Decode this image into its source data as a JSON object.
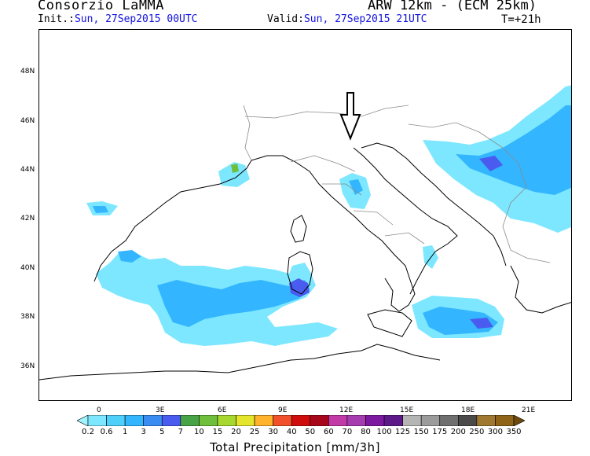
{
  "header": {
    "title": "Consorzio LaMMA",
    "model": "ARW 12km - (ECM 25km)",
    "init_label": "Init.:",
    "init_value": "Sun, 27Sep2015 00UTC",
    "valid_label": "Valid:",
    "valid_value": "Sun, 27Sep2015 21UTC",
    "lead_time": "T=+21h"
  },
  "map": {
    "lat_labels": [
      "48N",
      "46N",
      "44N",
      "42N",
      "40N",
      "38N",
      "36N"
    ],
    "lon_labels": [
      "0",
      "3E",
      "6E",
      "9E",
      "12E",
      "15E",
      "18E",
      "21E"
    ],
    "arrow": "down-arrow-icon"
  },
  "colorbar": {
    "title": "Total Precipitation [mm/3h]",
    "thresholds": [
      "0.2",
      "0.6",
      "1",
      "3",
      "5",
      "7",
      "10",
      "15",
      "20",
      "25",
      "30",
      "40",
      "50",
      "60",
      "70",
      "80",
      "100",
      "125",
      "150",
      "175",
      "200",
      "250",
      "300",
      "350"
    ],
    "colors": [
      "#9ff5ff",
      "#7de7ff",
      "#4fd0fb",
      "#33b6ff",
      "#3a8bf2",
      "#4a5cf0",
      "#48a246",
      "#6fbf3c",
      "#a7d82f",
      "#e5e52b",
      "#ffb22c",
      "#f0502c",
      "#d00d0d",
      "#a7071b",
      "#c23aa6",
      "#a53caf",
      "#7d19a0",
      "#5d1988",
      "#b5b5b5",
      "#9b9b9b",
      "#6f6f6f",
      "#4a4a4a",
      "#a0782f",
      "#8f6419",
      "#6f4a0e"
    ]
  }
}
